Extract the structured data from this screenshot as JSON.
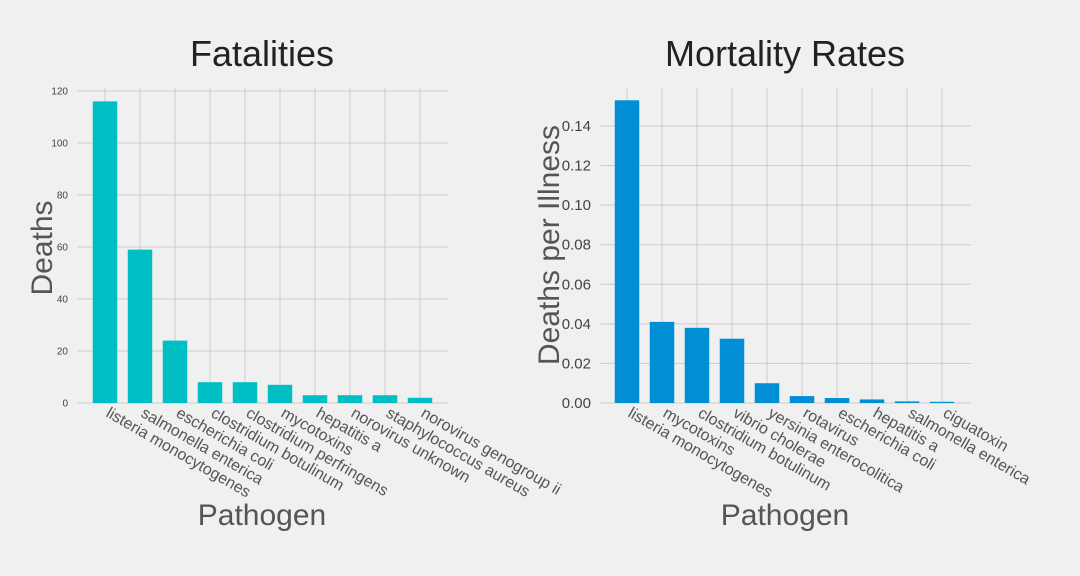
{
  "colors": {
    "background": "#f0f0f0",
    "grid": "#cbcbcb",
    "text": "#222222",
    "tick_text": "#444444",
    "label_text": "#555555"
  },
  "chart_data": [
    {
      "type": "bar",
      "title": "Fatalities",
      "xlabel": "Pathogen",
      "ylabel": "Deaths",
      "color": "#00bfc4",
      "grid": true,
      "ylim": [
        0,
        120
      ],
      "yticks": [
        0,
        20,
        40,
        60,
        80,
        100,
        120
      ],
      "ytick_labels": [
        "0",
        "20",
        "40",
        "60",
        "80",
        "100",
        "120"
      ],
      "categories": [
        "listeria monocytogenes",
        "salmonella enterica",
        "escherichia coli",
        "clostridium botulinum",
        "clostridium perfringens",
        "mycotoxins",
        "hepatitis a",
        "norovirus unknown",
        "staphylococcus aureus",
        "norovirus genogroup ii"
      ],
      "values": [
        116,
        59,
        24,
        8,
        8,
        7,
        3,
        3,
        3,
        2
      ]
    },
    {
      "type": "bar",
      "title": "Mortality Rates",
      "xlabel": "Pathogen",
      "ylabel": "Deaths per Illness",
      "color": "#008fd5",
      "grid": true,
      "ylim": [
        0,
        0.16
      ],
      "yticks": [
        0,
        0.02,
        0.04,
        0.06,
        0.08,
        0.1,
        0.12,
        0.14
      ],
      "ytick_labels": [
        "0.00",
        "0.02",
        "0.04",
        "0.06",
        "0.08",
        "0.10",
        "0.12",
        "0.14"
      ],
      "categories": [
        "listeria monocytogenes",
        "mycotoxins",
        "clostridium botulinum",
        "vibrio cholerae",
        "yersinia enterocolitica",
        "rotavirus",
        "escherichia coli",
        "hepatitis a",
        "salmonella enterica",
        "ciguatoxin"
      ],
      "values": [
        0.153,
        0.041,
        0.038,
        0.0325,
        0.01,
        0.0035,
        0.0025,
        0.0018,
        0.0008,
        0.0006
      ]
    }
  ]
}
